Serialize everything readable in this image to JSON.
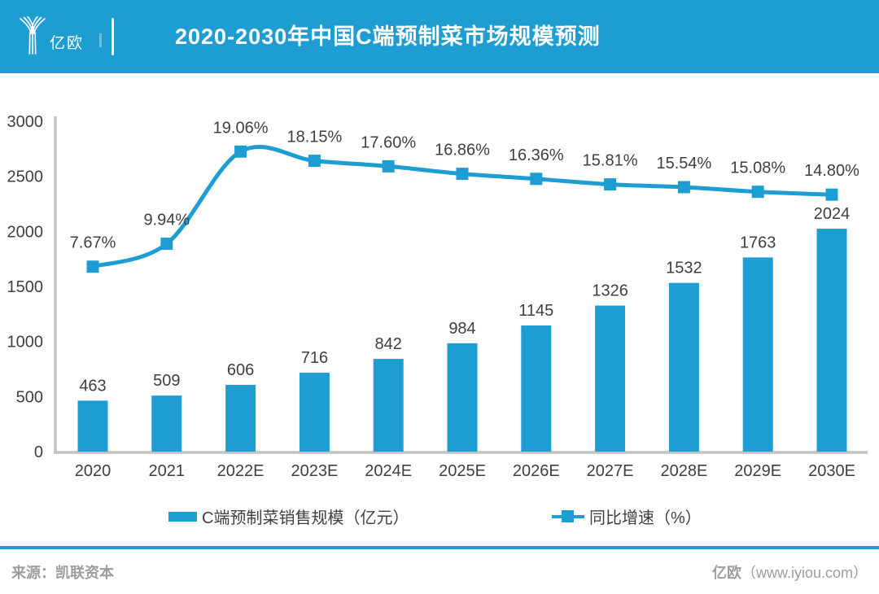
{
  "header": {
    "logo_text": "亿欧",
    "title": "2020-2030年中国C端预制菜市场规模预测"
  },
  "chart_data": {
    "type": "bar",
    "subtype": "bar-line-combo",
    "title": "2020-2030年中国C端预制菜市场规模预测",
    "categories": [
      "2020",
      "2021",
      "2022E",
      "2023E",
      "2024E",
      "2025E",
      "2026E",
      "2027E",
      "2028E",
      "2029E",
      "2030E"
    ],
    "series": [
      {
        "name": "C端预制菜销售规模（亿元）",
        "type": "bar",
        "unit": "亿元",
        "values": [
          463,
          509,
          606,
          716,
          842,
          984,
          1145,
          1326,
          1532,
          1763,
          2024
        ]
      },
      {
        "name": "同比增速（%）",
        "type": "line",
        "unit": "%",
        "values": [
          7.67,
          9.94,
          19.06,
          18.15,
          17.6,
          16.86,
          16.36,
          15.81,
          15.54,
          15.08,
          14.8
        ],
        "labels": [
          "7.67%",
          "9.94%",
          "19.06%",
          "18.15%",
          "17.60%",
          "16.86%",
          "16.36%",
          "15.81%",
          "15.54%",
          "15.08%",
          "14.80%"
        ]
      }
    ],
    "xlabel": "",
    "ylabel": "",
    "y_axis": {
      "min": 0,
      "max": 3000,
      "ticks": [
        0,
        500,
        1000,
        1500,
        2000,
        2500,
        3000
      ]
    },
    "grid": false,
    "legend_position": "bottom"
  },
  "legend": {
    "bar_label": "C端预制菜销售规模（亿元）",
    "line_label": "同比增速（%）"
  },
  "footer": {
    "source": "来源：凯联资本",
    "site_bold": "亿欧",
    "site_rest": "（www.iyiou.com）"
  },
  "colors": {
    "accent": "#1E9DD2",
    "axis": "#C1C1C1",
    "ink": "#3F3F3F",
    "muted": "#9D9DA0"
  }
}
